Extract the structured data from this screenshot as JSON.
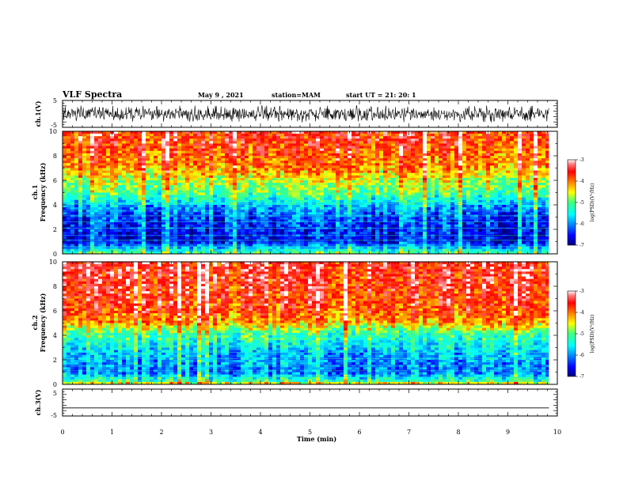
{
  "header": {
    "title": "VLF Spectra",
    "date": "May 9 , 2021",
    "station": "station=MAM",
    "start": "start UT = 21: 20: 1"
  },
  "chart_data": [
    {
      "type": "line",
      "name": "ch1-waveform",
      "ylabel": "ch.1(V)",
      "ylim": [
        -5,
        5
      ],
      "yticks": [
        "5",
        "-5"
      ],
      "xlim": [
        0,
        10
      ],
      "amplitude_range": [
        -3.2,
        3.2
      ],
      "end_minute": 9.83
    },
    {
      "type": "heatmap",
      "name": "ch1-spectrogram",
      "ylabel": "ch.1\nFrequency (kHz)",
      "ylim": [
        0,
        10
      ],
      "yticks": [
        "0",
        "2",
        "4",
        "6",
        "8",
        "10"
      ],
      "xlim": [
        0,
        10
      ],
      "end_minute": 9.83,
      "log_psd_profile": [
        {
          "f": 0.0,
          "v": -5.0
        },
        {
          "f": 0.4,
          "v": -5.6
        },
        {
          "f": 1.0,
          "v": -6.6
        },
        {
          "f": 2.5,
          "v": -6.4
        },
        {
          "f": 3.5,
          "v": -6.1
        },
        {
          "f": 4.2,
          "v": -5.6
        },
        {
          "f": 5.0,
          "v": -5.0
        },
        {
          "f": 6.0,
          "v": -4.6
        },
        {
          "f": 7.0,
          "v": -4.1
        },
        {
          "f": 8.5,
          "v": -3.8
        },
        {
          "f": 10.0,
          "v": -3.6
        }
      ],
      "colorbar": {
        "label": "log(PSD)(V²/Hz)",
        "range": [
          -7,
          -3
        ],
        "ticks": [
          "-3",
          "-4",
          "-5",
          "-6",
          "-7"
        ]
      }
    },
    {
      "type": "heatmap",
      "name": "ch2-spectrogram",
      "ylabel": "ch.2\nFrequency (kHz)",
      "ylim": [
        0,
        10
      ],
      "yticks": [
        "0",
        "2",
        "4",
        "6",
        "8",
        "10"
      ],
      "xlim": [
        0,
        10
      ],
      "end_minute": 9.83,
      "log_psd_profile": [
        {
          "f": 0.0,
          "v": -4.2
        },
        {
          "f": 0.3,
          "v": -5.2
        },
        {
          "f": 1.0,
          "v": -6.1
        },
        {
          "f": 2.5,
          "v": -5.8
        },
        {
          "f": 3.5,
          "v": -5.4
        },
        {
          "f": 4.3,
          "v": -5.0
        },
        {
          "f": 5.0,
          "v": -4.2
        },
        {
          "f": 6.0,
          "v": -3.8
        },
        {
          "f": 8.0,
          "v": -3.6
        },
        {
          "f": 10.0,
          "v": -3.5
        }
      ],
      "colorbar": {
        "label": "log(PSD)(V²/Hz)",
        "range": [
          -7,
          -3
        ],
        "ticks": [
          "-3",
          "-4",
          "-5",
          "-6",
          "-7"
        ]
      }
    },
    {
      "type": "line",
      "name": "ch3-waveform",
      "ylabel": "ch.3(V)",
      "ylim": [
        -5,
        5
      ],
      "yticks": [
        "5",
        "-5"
      ],
      "xlim": [
        0,
        10
      ],
      "constant_value": -2,
      "end_minute": 9.83
    }
  ],
  "xaxis": {
    "label": "Time (min)",
    "ticks": [
      "0",
      "1",
      "2",
      "3",
      "4",
      "5",
      "6",
      "7",
      "8",
      "9",
      "10"
    ],
    "range": [
      0,
      10
    ]
  },
  "colors": {
    "waveform": "#000000",
    "axis": "#000000",
    "background": "#ffffff"
  }
}
